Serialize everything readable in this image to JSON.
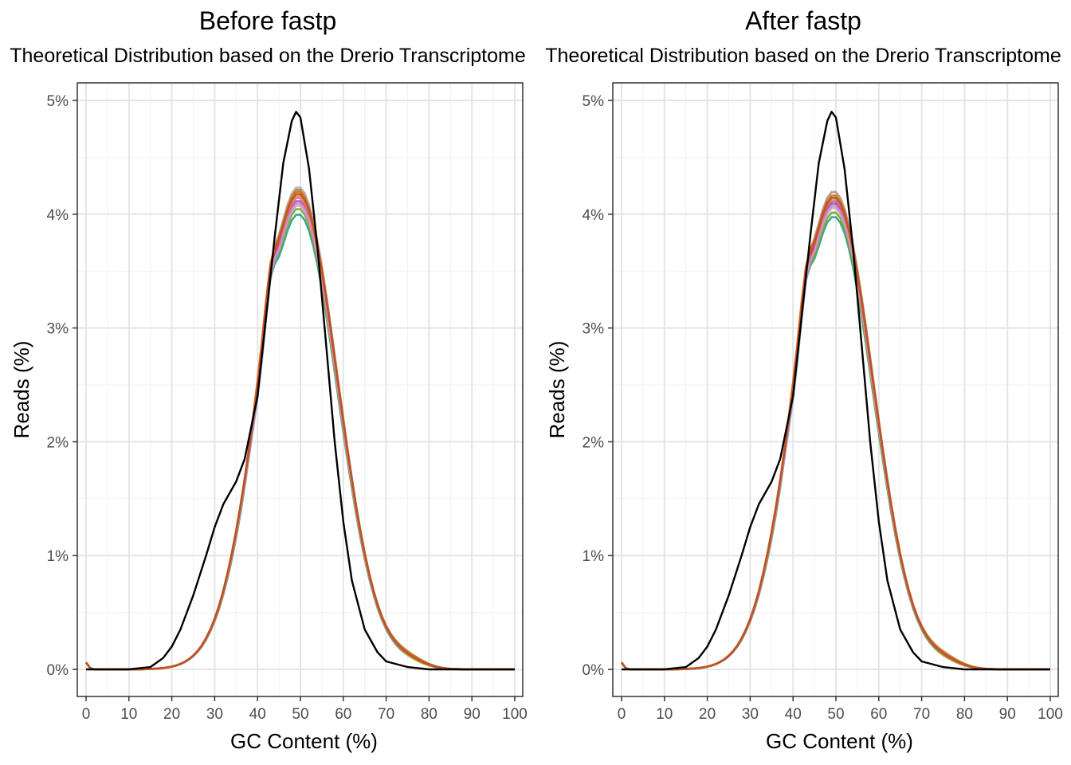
{
  "chart_data": [
    {
      "type": "line",
      "title": "Before fastp",
      "subtitle": "Theoretical Distribution based on the Drerio Transcriptome",
      "xlabel": "GC Content (%)",
      "ylabel": "Reads (%)",
      "xlim": [
        0,
        100
      ],
      "ylim": [
        0,
        5
      ],
      "x_ticks": [
        0,
        10,
        20,
        30,
        40,
        50,
        60,
        70,
        80,
        90,
        100
      ],
      "y_ticks": [
        0,
        1,
        2,
        3,
        4,
        5
      ],
      "y_tick_labels": [
        "0%",
        "1%",
        "2%",
        "3%",
        "4%",
        "5%"
      ],
      "theoretical_series": {
        "name": "Theoretical",
        "color": "#000000",
        "points": [
          [
            0,
            0
          ],
          [
            10,
            0
          ],
          [
            15,
            0.02
          ],
          [
            18,
            0.1
          ],
          [
            20,
            0.2
          ],
          [
            22,
            0.35
          ],
          [
            25,
            0.65
          ],
          [
            28,
            1.0
          ],
          [
            30,
            1.25
          ],
          [
            32,
            1.45
          ],
          [
            35,
            1.65
          ],
          [
            37,
            1.85
          ],
          [
            40,
            2.4
          ],
          [
            42,
            3.1
          ],
          [
            44,
            3.8
          ],
          [
            46,
            4.45
          ],
          [
            48,
            4.82
          ],
          [
            49,
            4.9
          ],
          [
            50,
            4.85
          ],
          [
            52,
            4.4
          ],
          [
            54,
            3.7
          ],
          [
            56,
            2.85
          ],
          [
            58,
            2.0
          ],
          [
            60,
            1.3
          ],
          [
            62,
            0.78
          ],
          [
            65,
            0.35
          ],
          [
            68,
            0.15
          ],
          [
            70,
            0.07
          ],
          [
            75,
            0.02
          ],
          [
            80,
            0
          ],
          [
            100,
            0
          ]
        ]
      },
      "observed_series": [
        {
          "color": "#1b9e77",
          "peak": 4.0,
          "shoulder": 3.2,
          "tail": 0.04
        },
        {
          "color": "#66a61e",
          "peak": 4.05,
          "shoulder": 3.15,
          "tail": 0.05
        },
        {
          "color": "#7570b3",
          "peak": 4.15,
          "shoulder": 3.05,
          "tail": 0.06
        },
        {
          "color": "#e7298a",
          "peak": 4.12,
          "shoulder": 3.1,
          "tail": 0.05
        },
        {
          "color": "#a6761d",
          "peak": 4.22,
          "shoulder": 3.0,
          "tail": 0.07
        },
        {
          "color": "#e6ab02",
          "peak": 4.18,
          "shoulder": 3.08,
          "tail": 0.04
        },
        {
          "color": "#8da0cb",
          "peak": 4.1,
          "shoulder": 2.95,
          "tail": 0.05
        },
        {
          "color": "#b3a6a0",
          "peak": 4.24,
          "shoulder": 3.0,
          "tail": 0.06
        },
        {
          "color": "#e78ac3",
          "peak": 4.08,
          "shoulder": 3.12,
          "tail": 0.05
        },
        {
          "color": "#fc8d62",
          "peak": 4.16,
          "shoulder": 3.18,
          "tail": 0.05
        },
        {
          "color": "#d95f02",
          "peak": 4.2,
          "shoulder": 3.1,
          "tail": 0.06
        },
        {
          "color": "#b5502a",
          "peak": 4.18,
          "shoulder": 3.05,
          "tail": 0.05
        }
      ]
    },
    {
      "type": "line",
      "title": "After fastp",
      "subtitle": "Theoretical Distribution based on the Drerio Transcriptome",
      "xlabel": "GC Content (%)",
      "ylabel": "Reads (%)",
      "xlim": [
        0,
        100
      ],
      "ylim": [
        0,
        5
      ],
      "x_ticks": [
        0,
        10,
        20,
        30,
        40,
        50,
        60,
        70,
        80,
        90,
        100
      ],
      "y_ticks": [
        0,
        1,
        2,
        3,
        4,
        5
      ],
      "y_tick_labels": [
        "0%",
        "1%",
        "2%",
        "3%",
        "4%",
        "5%"
      ],
      "theoretical_series": {
        "name": "Theoretical",
        "color": "#000000",
        "points": [
          [
            0,
            0
          ],
          [
            10,
            0
          ],
          [
            15,
            0.02
          ],
          [
            18,
            0.1
          ],
          [
            20,
            0.2
          ],
          [
            22,
            0.35
          ],
          [
            25,
            0.65
          ],
          [
            28,
            1.0
          ],
          [
            30,
            1.25
          ],
          [
            32,
            1.45
          ],
          [
            35,
            1.65
          ],
          [
            37,
            1.85
          ],
          [
            40,
            2.4
          ],
          [
            42,
            3.1
          ],
          [
            44,
            3.8
          ],
          [
            46,
            4.45
          ],
          [
            48,
            4.82
          ],
          [
            49,
            4.9
          ],
          [
            50,
            4.85
          ],
          [
            52,
            4.4
          ],
          [
            54,
            3.7
          ],
          [
            56,
            2.85
          ],
          [
            58,
            2.0
          ],
          [
            60,
            1.3
          ],
          [
            62,
            0.78
          ],
          [
            65,
            0.35
          ],
          [
            68,
            0.15
          ],
          [
            70,
            0.07
          ],
          [
            75,
            0.02
          ],
          [
            80,
            0
          ],
          [
            100,
            0
          ]
        ]
      },
      "observed_series": [
        {
          "color": "#1b9e77",
          "peak": 3.98,
          "shoulder": 3.2,
          "tail": 0.04
        },
        {
          "color": "#66a61e",
          "peak": 4.02,
          "shoulder": 3.15,
          "tail": 0.05
        },
        {
          "color": "#7570b3",
          "peak": 4.12,
          "shoulder": 3.05,
          "tail": 0.06
        },
        {
          "color": "#e7298a",
          "peak": 4.1,
          "shoulder": 3.1,
          "tail": 0.05
        },
        {
          "color": "#a6761d",
          "peak": 4.2,
          "shoulder": 3.0,
          "tail": 0.07
        },
        {
          "color": "#e6ab02",
          "peak": 4.15,
          "shoulder": 3.08,
          "tail": 0.04
        },
        {
          "color": "#8da0cb",
          "peak": 4.08,
          "shoulder": 2.95,
          "tail": 0.05
        },
        {
          "color": "#b3a6a0",
          "peak": 4.2,
          "shoulder": 3.0,
          "tail": 0.06
        },
        {
          "color": "#e78ac3",
          "peak": 4.06,
          "shoulder": 3.12,
          "tail": 0.05
        },
        {
          "color": "#fc8d62",
          "peak": 4.14,
          "shoulder": 3.18,
          "tail": 0.05
        },
        {
          "color": "#d95f02",
          "peak": 4.17,
          "shoulder": 3.1,
          "tail": 0.06
        },
        {
          "color": "#b5502a",
          "peak": 4.15,
          "shoulder": 3.05,
          "tail": 0.05
        }
      ]
    }
  ]
}
